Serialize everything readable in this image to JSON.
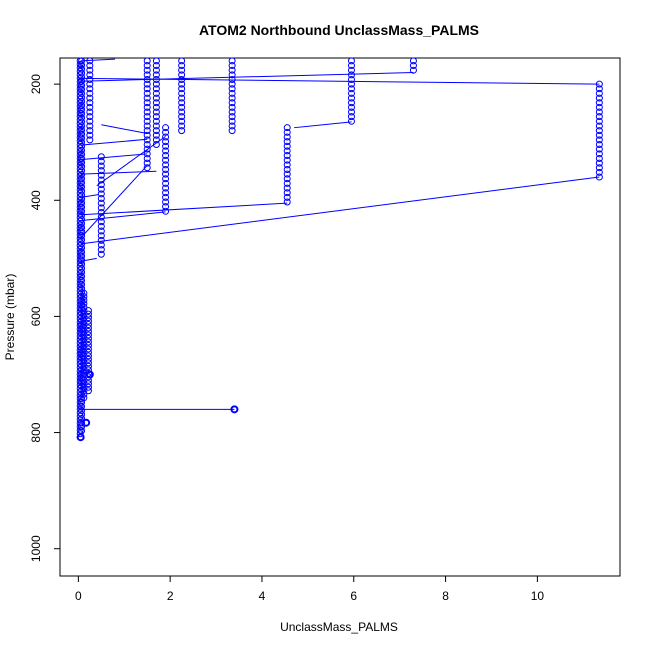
{
  "chart_data": {
    "type": "scatter",
    "title": "ATOM2 Northbound UnclassMass_PALMS",
    "xlabel": "UnclassMass_PALMS",
    "ylabel": "Pressure (mbar)",
    "xlim": [
      -0.4,
      11.8
    ],
    "ylim": [
      1047,
      155
    ],
    "y_reversed": true,
    "x_ticks": [
      0,
      2,
      4,
      6,
      8,
      10
    ],
    "y_ticks": [
      200,
      400,
      600,
      800,
      1000
    ],
    "grid": false,
    "legend": "none",
    "marker": "open-circle",
    "series_color": "#0000ff",
    "columns": [
      {
        "x": 0.04,
        "y_from": 160,
        "y_to": 810,
        "step": 6
      },
      {
        "x": 0.07,
        "y_from": 160,
        "y_to": 800,
        "step": 7
      },
      {
        "x": 0.12,
        "y_from": 560,
        "y_to": 745,
        "step": 6
      },
      {
        "x": 0.22,
        "y_from": 590,
        "y_to": 730,
        "step": 6
      },
      {
        "x": 0.25,
        "y_from": 160,
        "y_to": 300,
        "step": 8
      },
      {
        "x": 0.5,
        "y_from": 325,
        "y_to": 500,
        "step": 8
      },
      {
        "x": 1.5,
        "y_from": 160,
        "y_to": 345,
        "step": 8
      },
      {
        "x": 1.7,
        "y_from": 160,
        "y_to": 310,
        "step": 8
      },
      {
        "x": 1.9,
        "y_from": 275,
        "y_to": 420,
        "step": 8
      },
      {
        "x": 2.25,
        "y_from": 160,
        "y_to": 280,
        "step": 8
      },
      {
        "x": 3.35,
        "y_from": 160,
        "y_to": 285,
        "step": 8
      },
      {
        "x": 4.55,
        "y_from": 275,
        "y_to": 405,
        "step": 8
      },
      {
        "x": 5.95,
        "y_from": 160,
        "y_to": 265,
        "step": 8
      },
      {
        "x": 7.3,
        "y_from": 160,
        "y_to": 180,
        "step": 8
      },
      {
        "x": 11.35,
        "y_from": 200,
        "y_to": 360,
        "step": 8
      }
    ],
    "points": [
      {
        "x": 3.4,
        "y": 760
      },
      {
        "x": 0.17,
        "y": 783
      },
      {
        "x": 0.05,
        "y": 808
      },
      {
        "x": 0.25,
        "y": 700
      }
    ],
    "connectors": [
      {
        "x1": 0.0,
        "y1": 760,
        "x2": 3.4,
        "y2": 760
      },
      {
        "x1": 0.0,
        "y1": 190,
        "x2": 11.35,
        "y2": 200
      },
      {
        "x1": 0.05,
        "y1": 195,
        "x2": 7.3,
        "y2": 180
      },
      {
        "x1": 0.05,
        "y1": 475,
        "x2": 11.35,
        "y2": 360
      },
      {
        "x1": 0.05,
        "y1": 425,
        "x2": 4.55,
        "y2": 405
      },
      {
        "x1": 0.05,
        "y1": 435,
        "x2": 1.9,
        "y2": 420
      },
      {
        "x1": 0.05,
        "y1": 465,
        "x2": 1.5,
        "y2": 340
      },
      {
        "x1": 0.4,
        "y1": 375,
        "x2": 1.9,
        "y2": 290
      },
      {
        "x1": 0.05,
        "y1": 330,
        "x2": 1.5,
        "y2": 320
      },
      {
        "x1": 0.5,
        "y1": 270,
        "x2": 1.5,
        "y2": 285
      },
      {
        "x1": 0.05,
        "y1": 305,
        "x2": 1.5,
        "y2": 295
      },
      {
        "x1": 0.05,
        "y1": 355,
        "x2": 1.7,
        "y2": 350
      },
      {
        "x1": 4.7,
        "y1": 275,
        "x2": 5.95,
        "y2": 265
      },
      {
        "x1": 0.05,
        "y1": 505,
        "x2": 0.4,
        "y2": 500
      },
      {
        "x1": 0.05,
        "y1": 160,
        "x2": 0.8,
        "y2": 157
      },
      {
        "x1": 0.05,
        "y1": 395,
        "x2": 0.45,
        "y2": 390
      }
    ]
  }
}
